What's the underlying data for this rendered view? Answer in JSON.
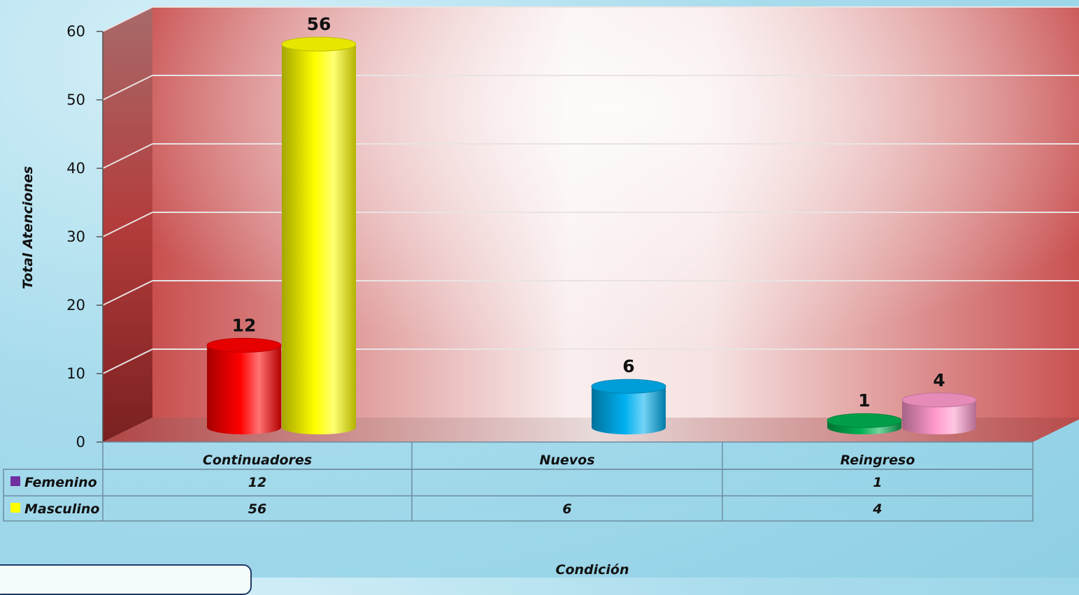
{
  "chart_data": {
    "type": "bar",
    "style": "3d-cylinder",
    "categories": [
      "Continuadores",
      "Nuevos",
      "Reingreso"
    ],
    "series": [
      {
        "name": "Femenino",
        "values": [
          12,
          null,
          1
        ],
        "legend_color": "#7030a0"
      },
      {
        "name": "Masculino",
        "values": [
          56,
          6,
          4
        ],
        "legend_color": "#ffff00"
      }
    ],
    "bar_colors": {
      "Continuadores": [
        "#ff0000",
        "#ffff00"
      ],
      "Nuevos": [
        "#00b0f0"
      ],
      "Reingreso": [
        "#00b050",
        "#ff99cc"
      ]
    },
    "data_labels": {
      "Continuadores": [
        "12",
        "56"
      ],
      "Nuevos": [
        "6"
      ],
      "Reingreso": [
        "1",
        "4"
      ]
    },
    "table": {
      "Femenino": [
        "12",
        "",
        "1"
      ],
      "Masculino": [
        "56",
        "6",
        "4"
      ]
    },
    "yticks": [
      "0",
      "10",
      "20",
      "30",
      "40",
      "50",
      "60"
    ],
    "ylabel": "Total Atenciones",
    "xlabel": "Condición",
    "ylim": [
      0,
      60
    ],
    "grid": true,
    "legend": "data-table-left"
  }
}
